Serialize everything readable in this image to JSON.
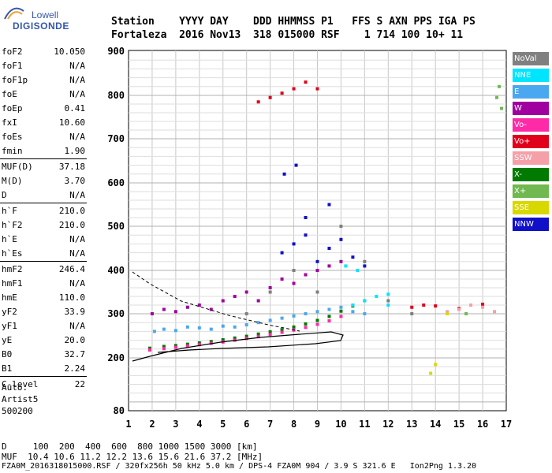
{
  "logo": {
    "line1": "Lowell",
    "line2": "DIGISONDE"
  },
  "header": {
    "line1": "Station    YYYY DAY    DDD HHMMSS P1   FFS S AXN PPS IGA PS",
    "line2": "Fortaleza  2016 Nov13  318 015000 RSF    1 714 100 10+ 11"
  },
  "params": [
    {
      "k": "foF2",
      "v": "10.050"
    },
    {
      "k": "foF1",
      "v": "N/A"
    },
    {
      "k": "foF1p",
      "v": "N/A"
    },
    {
      "k": "foE",
      "v": "N/A"
    },
    {
      "k": "foEp",
      "v": "0.41"
    },
    {
      "k": "fxI",
      "v": "10.60"
    },
    {
      "k": "foEs",
      "v": "N/A"
    },
    {
      "k": "fmin",
      "v": "1.90"
    },
    {
      "k": "MUF(D)",
      "v": "37.18"
    },
    {
      "k": "M(D)",
      "v": "3.70"
    },
    {
      "k": "D",
      "v": "N/A"
    },
    {
      "k": "h`F",
      "v": "210.0"
    },
    {
      "k": "h`F2",
      "v": "210.0"
    },
    {
      "k": "h`E",
      "v": "N/A"
    },
    {
      "k": "h`Es",
      "v": "N/A"
    },
    {
      "k": "hmF2",
      "v": "246.4"
    },
    {
      "k": "hmF1",
      "v": "N/A"
    },
    {
      "k": "hmE",
      "v": "110.0"
    },
    {
      "k": "yF2",
      "v": "33.9"
    },
    {
      "k": "yF1",
      "v": "N/A"
    },
    {
      "k": "yE",
      "v": "20.0"
    },
    {
      "k": "B0",
      "v": "32.7"
    },
    {
      "k": "B1",
      "v": "2.24"
    },
    {
      "k": "C-level",
      "v": "22"
    }
  ],
  "auto": {
    "line1": "Auto:",
    "line2": "Artist5",
    "line3": "500200"
  },
  "footer": {
    "line1": "D     100  200  400  600  800 1000 1500 3000 [km]",
    "line2": "MUF  10.4 10.6 11.2 12.2 13.6 15.6 21.6 37.2 [MHz]",
    "line3": "FZA0M_2016318015000.RSF / 320fx256h 50 kHz 5.0 km / DPS-4 FZA0M 904 / 3.9 S 321.6 E   Ion2Png 1.3.20"
  },
  "legend": [
    {
      "label": "NoVal",
      "color": "#808080"
    },
    {
      "label": "NNE",
      "color": "#00e5ff"
    },
    {
      "label": "E",
      "color": "#4aa8f0"
    },
    {
      "label": "W",
      "color": "#a000a0"
    },
    {
      "label": "Vo-",
      "color": "#ff2aa8"
    },
    {
      "label": "Vo+",
      "color": "#e0001c"
    },
    {
      "label": "SSW",
      "color": "#f5a0a8"
    },
    {
      "label": "X-",
      "color": "#007a00"
    },
    {
      "label": "X+",
      "color": "#70b850"
    },
    {
      "label": "SSE",
      "color": "#d8d800"
    },
    {
      "label": "NNW",
      "color": "#1010c8"
    }
  ],
  "chart_data": {
    "type": "scatter",
    "xlim": [
      1,
      17
    ],
    "ylim": [
      80,
      900
    ],
    "xticks": [
      "1",
      "2",
      "3",
      "4",
      "5",
      "6",
      "7",
      "8",
      "9",
      "10",
      "11",
      "12",
      "13",
      "14",
      "15",
      "16",
      "17"
    ],
    "yticks": [
      "80",
      "200",
      "300",
      "400",
      "500",
      "600",
      "700",
      "800",
      "900"
    ],
    "grid": true,
    "series": [
      {
        "name": "X-",
        "color": "#007a00",
        "points": [
          [
            1.9,
            222
          ],
          [
            2.5,
            226
          ],
          [
            3,
            228
          ],
          [
            3.5,
            231
          ],
          [
            4,
            234
          ],
          [
            4.5,
            237
          ],
          [
            5,
            241
          ],
          [
            5.5,
            245
          ],
          [
            6,
            249
          ],
          [
            6.5,
            254
          ],
          [
            7,
            259
          ],
          [
            7.5,
            264
          ],
          [
            8,
            270
          ],
          [
            8.5,
            277
          ],
          [
            9,
            285
          ],
          [
            9.5,
            294
          ],
          [
            10,
            306
          ],
          [
            10.5,
            318
          ],
          [
            11,
            330
          ]
        ]
      },
      {
        "name": "Vo-",
        "color": "#ff2aa8",
        "points": [
          [
            1.9,
            218
          ],
          [
            2.5,
            221
          ],
          [
            3,
            224
          ],
          [
            3.5,
            227
          ],
          [
            4,
            230
          ],
          [
            4.5,
            233
          ],
          [
            5,
            236
          ],
          [
            5.5,
            240
          ],
          [
            6,
            244
          ],
          [
            6.5,
            248
          ],
          [
            7,
            253
          ],
          [
            7.5,
            258
          ],
          [
            8,
            263
          ],
          [
            8.5,
            269
          ],
          [
            9,
            276
          ],
          [
            9.5,
            284
          ],
          [
            10,
            294
          ]
        ]
      },
      {
        "name": "E",
        "color": "#4aa8f0",
        "points": [
          [
            2.1,
            260
          ],
          [
            2.5,
            265
          ],
          [
            3,
            262
          ],
          [
            3.5,
            270
          ],
          [
            4,
            268
          ],
          [
            4.5,
            265
          ],
          [
            5,
            272
          ],
          [
            5.5,
            270
          ],
          [
            6,
            275
          ],
          [
            6.5,
            280
          ],
          [
            7,
            285
          ],
          [
            7.5,
            290
          ],
          [
            8,
            295
          ],
          [
            8.5,
            300
          ],
          [
            9,
            305
          ],
          [
            9.5,
            310
          ],
          [
            10,
            315
          ],
          [
            10.5,
            305
          ],
          [
            11,
            300
          ]
        ]
      },
      {
        "name": "W",
        "color": "#a000a0",
        "points": [
          [
            2,
            300
          ],
          [
            2.5,
            310
          ],
          [
            3,
            305
          ],
          [
            3.5,
            315
          ],
          [
            4,
            320
          ],
          [
            4.5,
            310
          ],
          [
            5,
            330
          ],
          [
            5.5,
            340
          ],
          [
            6,
            350
          ],
          [
            6.5,
            330
          ],
          [
            7,
            360
          ],
          [
            7.5,
            380
          ],
          [
            8,
            370
          ],
          [
            8.5,
            390
          ],
          [
            9,
            400
          ],
          [
            9.5,
            410
          ],
          [
            10,
            420
          ]
        ]
      },
      {
        "name": "NNW",
        "color": "#1010c8",
        "points": [
          [
            7.5,
            440
          ],
          [
            8,
            460
          ],
          [
            8.5,
            480
          ],
          [
            9,
            420
          ],
          [
            9.5,
            450
          ],
          [
            10,
            470
          ],
          [
            10.5,
            430
          ],
          [
            11,
            410
          ],
          [
            7.6,
            620
          ],
          [
            8.1,
            640
          ],
          [
            8.5,
            520
          ],
          [
            9.5,
            550
          ]
        ]
      },
      {
        "name": "Vo+",
        "color": "#e0001c",
        "points": [
          [
            6.5,
            785
          ],
          [
            7,
            795
          ],
          [
            7.5,
            805
          ],
          [
            8,
            815
          ],
          [
            8.5,
            830
          ],
          [
            9,
            815
          ],
          [
            13,
            315
          ],
          [
            13.5,
            320
          ],
          [
            14,
            318
          ],
          [
            15,
            312
          ],
          [
            16,
            322
          ]
        ]
      },
      {
        "name": "NNE",
        "color": "#00e5ff",
        "points": [
          [
            10.5,
            320
          ],
          [
            11,
            330
          ],
          [
            11.5,
            340
          ],
          [
            12,
            345
          ],
          [
            10.2,
            410
          ],
          [
            10.7,
            400
          ],
          [
            12,
            320
          ]
        ]
      },
      {
        "name": "NoVal",
        "color": "#808080",
        "points": [
          [
            6,
            300
          ],
          [
            7,
            350
          ],
          [
            8,
            400
          ],
          [
            9,
            350
          ],
          [
            10,
            500
          ],
          [
            11,
            420
          ],
          [
            12,
            330
          ],
          [
            13,
            300
          ]
        ]
      },
      {
        "name": "SSW",
        "color": "#f5a0a8",
        "points": [
          [
            14.5,
            305
          ],
          [
            15,
            310
          ],
          [
            15.5,
            320
          ],
          [
            16,
            315
          ],
          [
            16.5,
            305
          ]
        ]
      },
      {
        "name": "X+",
        "color": "#70b850",
        "points": [
          [
            16.6,
            795
          ],
          [
            16.7,
            820
          ],
          [
            16.8,
            770
          ],
          [
            15.3,
            300
          ]
        ]
      },
      {
        "name": "SSE",
        "color": "#d8d800",
        "points": [
          [
            13.8,
            165
          ],
          [
            14,
            185
          ],
          [
            14.5,
            300
          ]
        ]
      }
    ]
  }
}
